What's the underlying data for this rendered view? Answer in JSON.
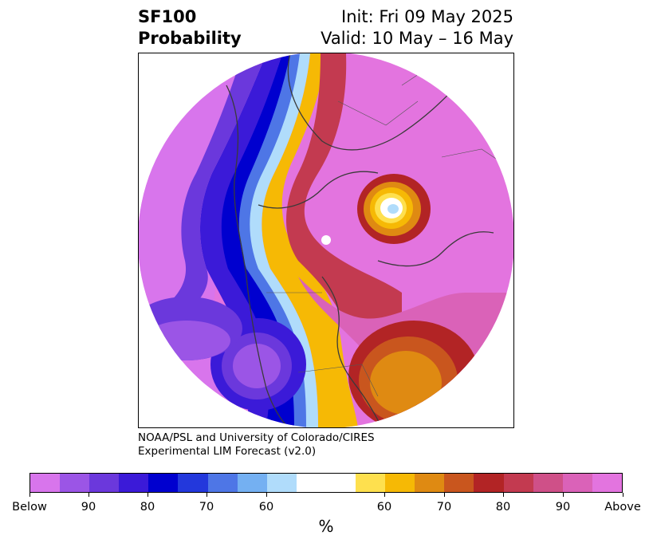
{
  "header": {
    "title_line1": "SF100",
    "title_line2": "Probability",
    "init_text": "Init: Fri 09 May 2025",
    "valid_text": "Valid: 10 May – 16 May"
  },
  "credit": {
    "line1": "NOAA/PSL and University of Colorado/CIRES",
    "line2": "Experimental LIM Forecast (v2.0)"
  },
  "colorbar": {
    "colors": [
      "#d875ec",
      "#9b55e6",
      "#6b38dc",
      "#3b1ad8",
      "#0000cf",
      "#2338dc",
      "#4e76e6",
      "#74b0f2",
      "#b0dcfb",
      "#ffffff",
      "#fee04e",
      "#f6b905",
      "#df8a12",
      "#c9561e",
      "#b22425",
      "#c33a50",
      "#cf5088",
      "#da62b8",
      "#e374df"
    ],
    "tick_labels": [
      "Below",
      "90",
      "80",
      "70",
      "60",
      "60",
      "70",
      "80",
      "90",
      "Above"
    ],
    "unit_label": "%"
  },
  "map": {
    "colors": {
      "above": "#e374df",
      "below": "#d875ec",
      "ocean_pink": "#da62b8",
      "deep_red": "#c33a50",
      "dark_red": "#b22425",
      "orange": "#df8a12",
      "orange_dark": "#c9561e",
      "yellow": "#fee04e",
      "gold": "#f6b905",
      "light_blue": "#b0dcfb",
      "sky_blue": "#74b0f2",
      "mid_blue": "#4e76e6",
      "royal_blue": "#2338dc",
      "navy_blue": "#0000cf",
      "indigo": "#3b1ad8",
      "violet": "#6b38dc",
      "lilac": "#9b55e6"
    }
  }
}
